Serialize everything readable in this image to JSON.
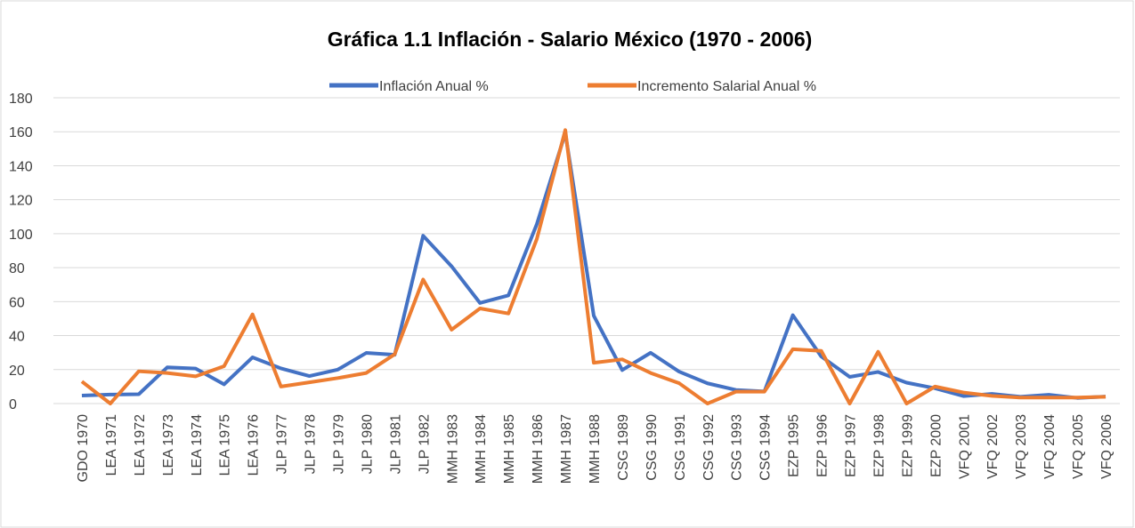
{
  "chart_data": {
    "type": "line",
    "title": "Gráfica 1.1 Inflación - Salario México (1970 - 2006)",
    "categories": [
      "GDO 1970",
      "LEA 1971",
      "LEA 1972",
      "LEA 1973",
      "LEA 1974",
      "LEA 1975",
      "LEA 1976",
      "JLP 1977",
      "JLP 1978",
      "JLP 1979",
      "JLP 1980",
      "JLP 1981",
      "JLP 1982",
      "MMH 1983",
      "MMH 1984",
      "MMH 1985",
      "MMH 1986",
      "MMH 1987",
      "MMH 1988",
      "CSG 1989",
      "CSG 1990",
      "CSG 1991",
      "CSG 1992",
      "CSG 1993",
      "CSG 1994",
      "EZP 1995",
      "EZP 1996",
      "EZP 1997",
      "EZP 1998",
      "EZP 1999",
      "EZP 2000",
      "VFQ 2001",
      "VFQ 2002",
      "VFQ 2003",
      "VFQ 2004",
      "VFQ 2005",
      "VFQ 2006"
    ],
    "series": [
      {
        "name": "Inflación Anual %",
        "color": "#4472c4",
        "values": [
          4.7,
          5.3,
          5.5,
          21.3,
          20.6,
          11.3,
          27.2,
          20.7,
          16.2,
          20.0,
          29.8,
          28.7,
          98.8,
          80.8,
          59.2,
          63.7,
          105.7,
          159.2,
          51.7,
          19.7,
          29.9,
          18.8,
          11.9,
          8.0,
          7.1,
          52.0,
          27.7,
          15.7,
          18.6,
          12.3,
          9.0,
          4.4,
          5.7,
          4.0,
          5.2,
          3.3,
          4.1
        ]
      },
      {
        "name": "Incremento Salarial Anual %",
        "color": "#ed7d31",
        "values": [
          13,
          0,
          19,
          18,
          16,
          22,
          52.5,
          10,
          12.5,
          15,
          18,
          29,
          73,
          43.5,
          56,
          53,
          97,
          161,
          24,
          26,
          18,
          12,
          0,
          7,
          7,
          32,
          31,
          0,
          30.5,
          0,
          10,
          6.5,
          4.5,
          3.5,
          3.5,
          3.5,
          4
        ]
      }
    ],
    "ylim": [
      0,
      180
    ],
    "yticks": [
      0,
      20,
      40,
      60,
      80,
      100,
      120,
      140,
      160,
      180
    ],
    "grid": true,
    "legend": "top"
  }
}
